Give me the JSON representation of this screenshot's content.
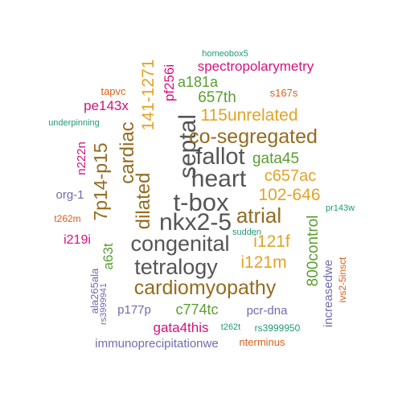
{
  "palette": {
    "gray": "#555555",
    "brown": "#946b1e",
    "gold": "#e2a325",
    "green": "#5a9e2f",
    "magenta": "#d4127d",
    "purple": "#6f6cb0",
    "orange": "#d9601b",
    "teal": "#1f9a78"
  },
  "words": [
    {
      "text": "t-box",
      "color": "gray"
    },
    {
      "text": "heart",
      "color": "gray"
    },
    {
      "text": "nkx2-5",
      "color": "gray"
    },
    {
      "text": "septal",
      "color": "gray"
    },
    {
      "text": "fallot",
      "color": "gray"
    },
    {
      "text": "congenital",
      "color": "gray"
    },
    {
      "text": "tetralogy",
      "color": "gray"
    },
    {
      "text": "cardiomyopathy",
      "color": "brown"
    },
    {
      "text": "co-segregated",
      "color": "brown"
    },
    {
      "text": "atrial",
      "color": "brown"
    },
    {
      "text": "cardiac",
      "color": "brown"
    },
    {
      "text": "dilated",
      "color": "brown"
    },
    {
      "text": "7p14-p15",
      "color": "brown"
    },
    {
      "text": "141-1271",
      "color": "gold"
    },
    {
      "text": "115unrelated",
      "color": "gold"
    },
    {
      "text": "102-646",
      "color": "gold"
    },
    {
      "text": "c657ac",
      "color": "gold"
    },
    {
      "text": "i121f",
      "color": "gold"
    },
    {
      "text": "i121m",
      "color": "gold"
    },
    {
      "text": "657th",
      "color": "green"
    },
    {
      "text": "a181a",
      "color": "green"
    },
    {
      "text": "gata45",
      "color": "green"
    },
    {
      "text": "800control",
      "color": "green"
    },
    {
      "text": "a63t",
      "color": "green"
    },
    {
      "text": "c774tc",
      "color": "green"
    },
    {
      "text": "spectropolarymetry",
      "color": "magenta"
    },
    {
      "text": "pf256i",
      "color": "magenta"
    },
    {
      "text": "pe143x",
      "color": "magenta"
    },
    {
      "text": "n222n",
      "color": "magenta"
    },
    {
      "text": "i219i",
      "color": "magenta"
    },
    {
      "text": "gata4this",
      "color": "magenta"
    },
    {
      "text": "s167s",
      "color": "orange"
    },
    {
      "text": "tapvc",
      "color": "orange"
    },
    {
      "text": "t262m",
      "color": "orange"
    },
    {
      "text": "ivs2-5insct",
      "color": "orange"
    },
    {
      "text": "nterminus",
      "color": "orange"
    },
    {
      "text": "org-1",
      "color": "purple"
    },
    {
      "text": "ala265ala",
      "color": "purple"
    },
    {
      "text": "p177p",
      "color": "purple"
    },
    {
      "text": "increasedwe",
      "color": "purple"
    },
    {
      "text": "pcr-dna",
      "color": "purple"
    },
    {
      "text": "immunoprecipitationwe",
      "color": "purple"
    },
    {
      "text": "rs3999941",
      "color": "purple"
    },
    {
      "text": "homeobox5",
      "color": "teal"
    },
    {
      "text": "underpinning",
      "color": "teal"
    },
    {
      "text": "pr143w",
      "color": "teal"
    },
    {
      "text": "sudden",
      "color": "teal"
    },
    {
      "text": "t262t",
      "color": "teal"
    },
    {
      "text": "rs3999950",
      "color": "teal"
    }
  ]
}
